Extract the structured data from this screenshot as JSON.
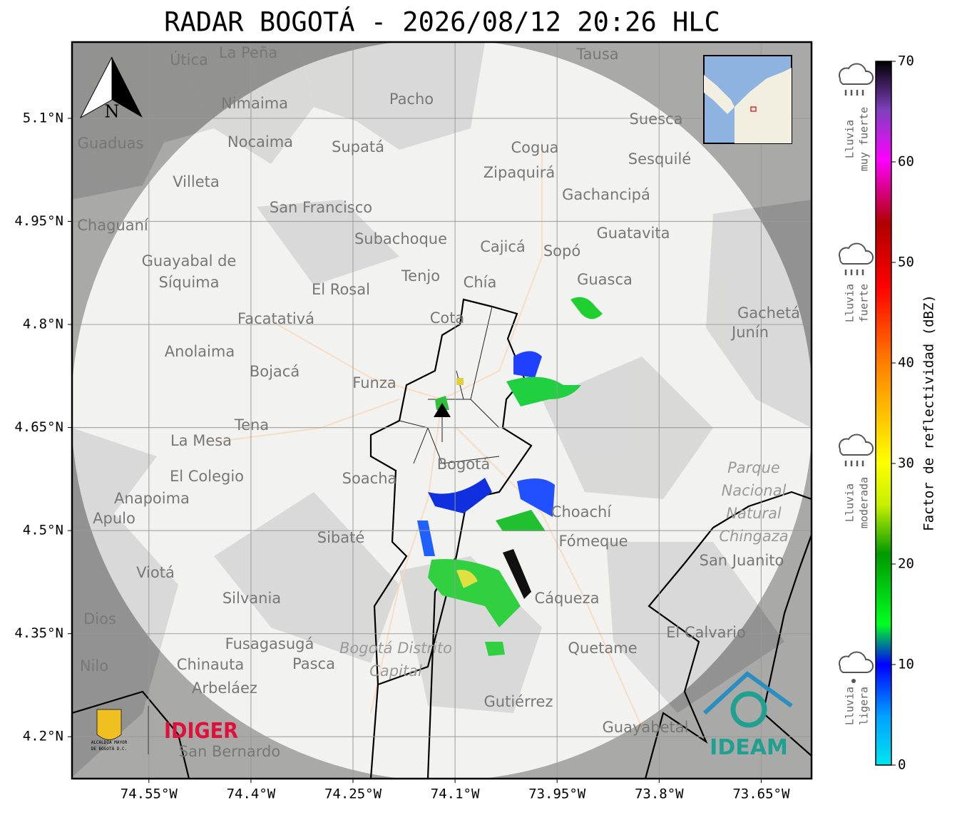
{
  "title": "RADAR BOGOTÁ - 2026/08/12 20:26 HLC",
  "map": {
    "xlim": [
      -74.663,
      -73.576
    ],
    "ylim": [
      4.139,
      5.211
    ],
    "xticks": [
      {
        "value": -74.55,
        "label": "74.55°W"
      },
      {
        "value": -74.4,
        "label": "74.4°W"
      },
      {
        "value": -74.25,
        "label": "74.25°W"
      },
      {
        "value": -74.1,
        "label": "74.1°W"
      },
      {
        "value": -73.95,
        "label": "73.95°W"
      },
      {
        "value": -73.8,
        "label": "73.8°W"
      },
      {
        "value": -73.65,
        "label": "73.65°W"
      }
    ],
    "yticks": [
      {
        "value": 5.1,
        "label": "5.1°N"
      },
      {
        "value": 4.95,
        "label": "4.95°N"
      },
      {
        "value": 4.8,
        "label": "4.8°N"
      },
      {
        "value": 4.65,
        "label": "4.65°N"
      },
      {
        "value": 4.5,
        "label": "4.5°N"
      },
      {
        "value": 4.35,
        "label": "4.35°N"
      },
      {
        "value": 4.2,
        "label": "4.2°N"
      }
    ],
    "grid": true,
    "north": "N",
    "places": [
      "La Peña",
      "Útica",
      "Tausa",
      "Pacho",
      "Nimaima",
      "Guaduas",
      "Nocaima",
      "Supatá",
      "Cogua",
      "Suesca",
      "Zipaquirá",
      "Sesquilé",
      "Villeta",
      "San Francisco",
      "Gachancipá",
      "Chaguaní",
      "Subachoque",
      "Cajicá",
      "Sopó",
      "Guatavita",
      "Guayabal de",
      "Síquima",
      "Tenjo",
      "Chía",
      "Guasca",
      "El Rosal",
      "Facatativá",
      "Cota",
      "Gachetá",
      "Junín",
      "Anolaima",
      "Bojacá",
      "Funza",
      "Tena",
      "La Mesa",
      "El Colegio",
      "Bogotá",
      "Soacha",
      "Anapoima",
      "Apulo",
      "Choachí",
      "Sibaté",
      "Fómeque",
      "San Juanito",
      "Viotá",
      "Silvania",
      "Cáqueza",
      "Dios",
      "El Calvario",
      "Fusagasugá",
      "Quetame",
      "Nilo",
      "Chinauta",
      "Pasca",
      "Arbeláez",
      "Gutiérrez",
      "Guayabetal",
      "San Bernardo"
    ],
    "parks": [
      "Parque",
      "Nacional",
      "Natural",
      "Chingaza",
      "Bogotá Distrito",
      "Capital"
    ]
  },
  "colorbar": {
    "label": "Factor de reflectividad (dBZ)",
    "lim": [
      0,
      70
    ],
    "ticks": [
      0,
      10,
      20,
      30,
      40,
      50,
      60,
      70
    ]
  },
  "legend": [
    [
      "Lluvia",
      "muy fuerte"
    ],
    [
      "Lluvia",
      "fuerte"
    ],
    [
      "Lluvia",
      "moderada"
    ],
    [
      "Lluvia",
      "ligera"
    ]
  ],
  "logos": {
    "alcaldia": [
      "ALCALDÍA MAYOR",
      "DE BOGOTÁ D.C."
    ],
    "idiger": "IDIGER",
    "ideam": "IDEAM"
  }
}
